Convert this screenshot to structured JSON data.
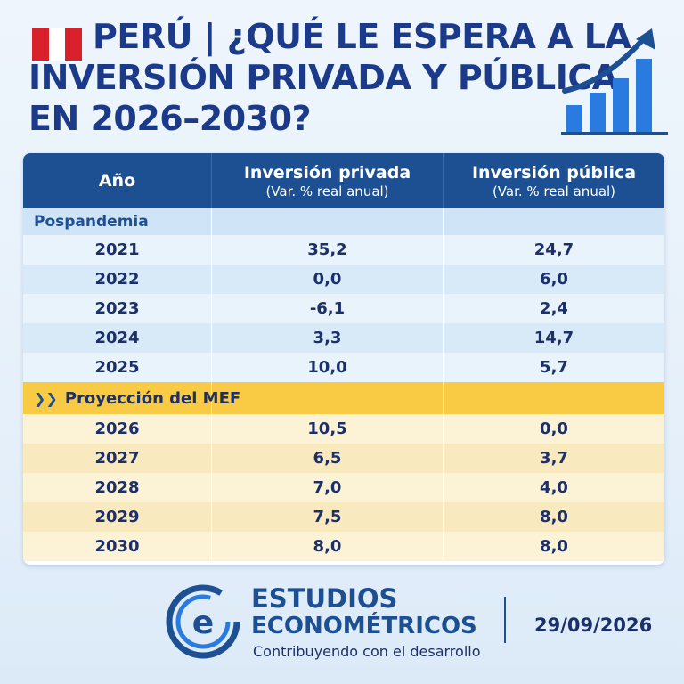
{
  "header": {
    "title_line1": "PERÚ | ¿QUÉ LE ESPERA A LA",
    "title_line2": "INVERSIÓN PRIVADA Y PÚBLICA",
    "title_line3": "EN 2026–2030?",
    "flag_colors": [
      "#d9212b",
      "#ffffff",
      "#d9212b"
    ],
    "icon": "bar-chart-growth-icon"
  },
  "table": {
    "columns": [
      {
        "title": "Año",
        "subtitle": ""
      },
      {
        "title": "Inversión privada",
        "subtitle": "(Var. % real anual)"
      },
      {
        "title": "Inversión pública",
        "subtitle": "(Var. % real anual)"
      }
    ],
    "section_actual": "Pospandemia",
    "rows_actual": [
      {
        "year": "2021",
        "private": "35,2",
        "public": "24,7"
      },
      {
        "year": "2022",
        "private": "0,0",
        "public": "6,0"
      },
      {
        "year": "2023",
        "private": "-6,1",
        "public": "2,4"
      },
      {
        "year": "2024",
        "private": "3,3",
        "public": "14,7"
      },
      {
        "year": "2025",
        "private": "10,0",
        "public": "5,7"
      }
    ],
    "section_projection": "Proyección del MEF",
    "rows_projection": [
      {
        "year": "2026",
        "private": "10,5",
        "public": "0,0"
      },
      {
        "year": "2027",
        "private": "6,5",
        "public": "3,7"
      },
      {
        "year": "2028",
        "private": "7,0",
        "public": "4,0"
      },
      {
        "year": "2029",
        "private": "7,5",
        "public": "8,0"
      },
      {
        "year": "2030",
        "private": "8,0",
        "public": "8,0"
      }
    ]
  },
  "footer": {
    "brand_line1": "ESTUDIOS",
    "brand_line2": "ECONOMÉTRICOS",
    "tagline": "Contribuyendo con el desarrollo",
    "date": "29/09/2026",
    "logo_icon": "estudios-econometricos-e-logo"
  },
  "colors": {
    "navy": "#1d4f93",
    "yellow": "#f9cb44",
    "peru_red": "#d9212b"
  }
}
